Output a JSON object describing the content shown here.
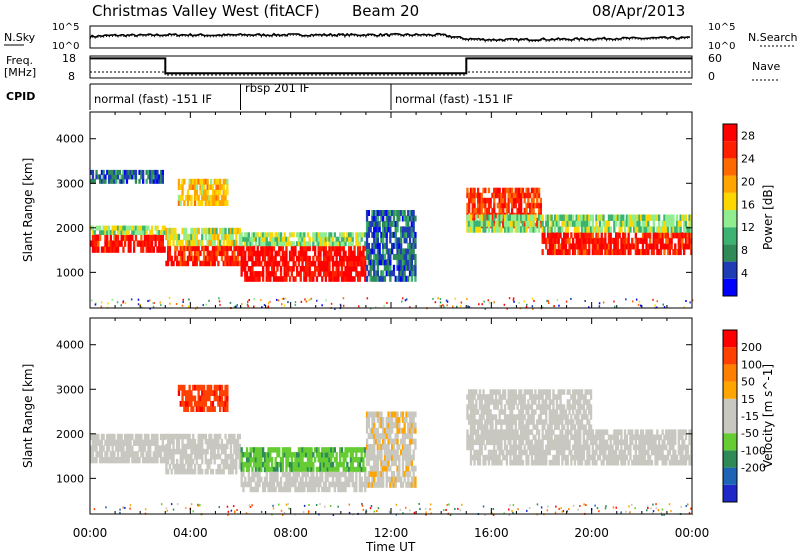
{
  "header": {
    "station": "Christmas Valley West (fitACF)",
    "beam": "Beam 20",
    "date": "08/Apr/2013"
  },
  "sky_panel": {
    "left_label": "N.Sky",
    "right_label": "N.Search",
    "left_ticks": [
      "10^5",
      "10^0"
    ],
    "right_ticks": [
      "10^5",
      "10^0"
    ]
  },
  "freq_panel": {
    "left_label_line1": "Freq.",
    "left_label_line2": "[MHz]",
    "right_label": "Nave",
    "left_ticks": [
      "18",
      "8"
    ],
    "right_ticks": [
      "60",
      "0"
    ]
  },
  "cpid": {
    "label": "CPID",
    "segments": [
      {
        "start_hour": 0,
        "end_hour": 6,
        "text": "normal (fast) -151 IF"
      },
      {
        "start_hour": 6,
        "end_hour": 12,
        "text": "rbsp 201 IF"
      },
      {
        "start_hour": 12,
        "end_hour": 24,
        "text": "normal (fast) -151 IF"
      }
    ]
  },
  "colors": {
    "power_scale": [
      "#0000ff",
      "#1e3cb4",
      "#2e8b57",
      "#3cb371",
      "#90ee90",
      "#ffd700",
      "#ffa500",
      "#ff6a00",
      "#ff2000",
      "#ff0000"
    ],
    "velocity_scale": [
      "#1e28c8",
      "#1e64b4",
      "#2e8b57",
      "#66cc33",
      "#c8c8c0",
      "#c8c8c0",
      "#ffa500",
      "#ff7f00",
      "#ff4000",
      "#ff0000"
    ],
    "ground_scatter": "#c0c0b8"
  },
  "chart_data": [
    {
      "type": "line",
      "name": "sky-noise",
      "x": [
        0,
        1,
        2,
        3,
        4,
        5,
        6,
        7,
        8,
        9,
        10,
        11,
        12,
        13,
        14,
        15,
        16,
        17,
        18,
        19,
        20,
        21,
        22,
        23,
        24
      ],
      "values": [
        2.6,
        2.9,
        2.9,
        3.0,
        3.0,
        2.9,
        3.0,
        3.0,
        3.0,
        3.0,
        3.0,
        3.0,
        3.0,
        3.0,
        3.0,
        2.1,
        1.9,
        1.9,
        2.0,
        2.0,
        2.1,
        2.2,
        2.2,
        2.3,
        2.3
      ],
      "ylim": [
        0,
        5
      ]
    },
    {
      "type": "line",
      "name": "frequency",
      "x": [
        0,
        3,
        3,
        15,
        15,
        24
      ],
      "values": [
        16.9,
        16.9,
        10.2,
        10.2,
        16.9,
        16.9
      ],
      "ylim": [
        8,
        18
      ]
    },
    {
      "type": "heatmap",
      "name": "power",
      "xlabel": "",
      "ylabel": "Slant Range [km]",
      "xlim": [
        0,
        24
      ],
      "ylim": [
        200,
        4600
      ],
      "xticks": [
        "00:00",
        "04:00",
        "08:00",
        "12:00",
        "16:00",
        "20:00",
        "00:00"
      ],
      "yticks": [
        1000,
        2000,
        3000,
        4000
      ],
      "colorbar_label": "Power [dB]",
      "colorbar_ticks": [
        "4",
        "8",
        "12",
        "16",
        "20",
        "24",
        "28"
      ],
      "zlim": [
        0,
        30
      ],
      "regions": [
        {
          "t0": 0,
          "t1": 3,
          "r0": 1450,
          "r1": 1850,
          "level": 27
        },
        {
          "t0": 0,
          "t1": 3,
          "r0": 1850,
          "r1": 2050,
          "level": 14
        },
        {
          "t0": 0,
          "t1": 3,
          "r0": 3000,
          "r1": 3300,
          "level": 6
        },
        {
          "t0": 3,
          "t1": 6,
          "r0": 1150,
          "r1": 1600,
          "level": 26
        },
        {
          "t0": 3,
          "t1": 6,
          "r0": 1600,
          "r1": 2000,
          "level": 15
        },
        {
          "t0": 3.5,
          "t1": 5.5,
          "r0": 2500,
          "r1": 3100,
          "level": 18
        },
        {
          "t0": 6,
          "t1": 11,
          "r0": 800,
          "r1": 1600,
          "level": 28
        },
        {
          "t0": 6,
          "t1": 11,
          "r0": 1600,
          "r1": 1900,
          "level": 14
        },
        {
          "t0": 11,
          "t1": 13,
          "r0": 800,
          "r1": 2400,
          "level": 6
        },
        {
          "t0": 15,
          "t1": 18,
          "r0": 2000,
          "r1": 2900,
          "level": 25
        },
        {
          "t0": 18,
          "t1": 24,
          "r0": 1400,
          "r1": 1900,
          "level": 27
        },
        {
          "t0": 15,
          "t1": 24,
          "r0": 1900,
          "r1": 2300,
          "level": 13
        }
      ]
    },
    {
      "type": "heatmap",
      "name": "velocity",
      "xlabel": "Time UT",
      "ylabel": "Slant Range [km]",
      "xlim": [
        0,
        24
      ],
      "ylim": [
        200,
        4600
      ],
      "xticks": [
        "00:00",
        "04:00",
        "08:00",
        "12:00",
        "16:00",
        "20:00",
        "00:00"
      ],
      "yticks": [
        1000,
        2000,
        3000,
        4000
      ],
      "colorbar_label": "Velocity [m s^-1]",
      "colorbar_ticks": [
        "200",
        "100",
        "50",
        "15",
        "-15",
        "-50",
        "-100",
        "-200"
      ],
      "zlim": [
        -250,
        250
      ],
      "regions": [
        {
          "t0": 0,
          "t1": 3,
          "r0": 1350,
          "r1": 2000,
          "level": 0
        },
        {
          "t0": 3,
          "t1": 6,
          "r0": 1100,
          "r1": 2000,
          "level": 0
        },
        {
          "t0": 3.5,
          "t1": 5.5,
          "r0": 2500,
          "r1": 3100,
          "level": 180
        },
        {
          "t0": 6,
          "t1": 11,
          "r0": 1150,
          "r1": 1700,
          "level": -80
        },
        {
          "t0": 6,
          "t1": 11,
          "r0": 700,
          "r1": 1150,
          "level": 0
        },
        {
          "t0": 11,
          "t1": 13,
          "r0": 800,
          "r1": 2500,
          "level": 35
        },
        {
          "t0": 15,
          "t1": 24,
          "r0": 1300,
          "r1": 2100,
          "level": 0
        },
        {
          "t0": 15,
          "t1": 20,
          "r0": 2100,
          "r1": 3000,
          "level": 0
        }
      ]
    }
  ]
}
